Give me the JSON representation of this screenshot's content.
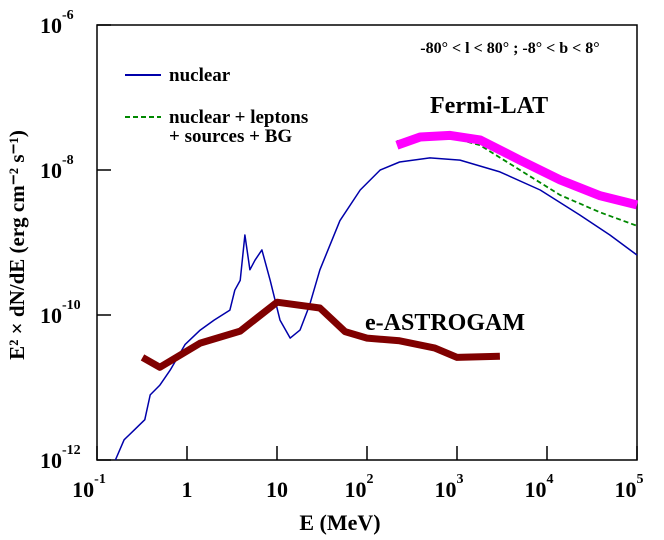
{
  "chart_data": {
    "type": "line",
    "x_label": "E (MeV)",
    "y_label": "E² × dN/dE  (erg cm⁻² s⁻¹)",
    "annotation": "-80° < l < 80° ; -8° < b < 8°",
    "log_x": true,
    "log_y": true,
    "xlim": [
      0.1,
      100000
    ],
    "ylim": [
      1e-12,
      1e-06
    ],
    "xticks": [
      {
        "value": 0.1,
        "label": "10",
        "exponent": "-1"
      },
      1,
      10,
      {
        "value": 100,
        "label": "10",
        "exponent": "2"
      },
      {
        "value": 1000,
        "label": "10",
        "exponent": "3"
      },
      {
        "value": 10000,
        "label": "10",
        "exponent": "4"
      },
      {
        "value": 100000,
        "label": "10",
        "exponent": "5"
      }
    ],
    "yticks": [
      {
        "value": 1e-12,
        "label": "10",
        "exponent": "-12"
      },
      {
        "value": 1e-10,
        "label": "10",
        "exponent": "-10"
      },
      {
        "value": 1e-08,
        "label": "10",
        "exponent": "-8"
      },
      {
        "value": 1e-06,
        "label": "10",
        "exponent": "-6"
      }
    ],
    "series": [
      {
        "name": [
          "nuclear"
        ],
        "color": "#0000aa",
        "dash": false,
        "x": [
          0.16,
          0.2,
          0.26,
          0.34,
          0.39,
          0.5,
          0.65,
          0.95,
          1.4,
          2.0,
          3.0,
          3.4,
          3.9,
          4.4,
          5.0,
          5.7,
          6.8,
          8.4,
          10.8,
          14,
          18,
          23,
          30,
          50,
          84,
          140,
          230,
          500,
          1080,
          3000,
          8400,
          23000,
          50000,
          100000
        ],
        "values": [
          1e-12,
          1.9e-12,
          2.6e-12,
          3.6e-12,
          7.9e-12,
          1.08e-11,
          1.74e-11,
          3.9e-11,
          6.2e-11,
          8.5e-11,
          1.17e-10,
          2.2e-10,
          3e-10,
          1.27e-09,
          4.2e-10,
          5.7e-10,
          7.9e-10,
          3e-10,
          8.5e-11,
          4.8e-11,
          6.2e-11,
          1.37e-10,
          4.2e-10,
          2e-09,
          5.3e-09,
          1e-08,
          1.29e-08,
          1.47e-08,
          1.37e-08,
          9.4e-09,
          5.3e-09,
          2.4e-09,
          1.27e-09,
          6.7e-10
        ]
      },
      {
        "name": [
          "nuclear + leptons",
          "+ sources + BG"
        ],
        "color": "#008800",
        "dash": true,
        "x": [
          215,
          650,
          1800,
          5000,
          14000,
          39000,
          100000
        ],
        "values": [
          2.5e-08,
          3.1e-08,
          2.2e-08,
          1e-08,
          4.5e-09,
          2.6e-09,
          1.7e-09
        ]
      },
      {
        "name": [
          "Fermi-LAT"
        ],
        "color": "#ff00ff",
        "dash": false,
        "x": [
          215,
          390,
          840,
          1800,
          5000,
          14000,
          39000,
          100000
        ],
        "values": [
          2.2e-08,
          2.85e-08,
          3e-08,
          2.6e-08,
          1.37e-08,
          7.3e-09,
          4.4e-09,
          3.3e-09
        ]
      },
      {
        "name": [
          "e-ASTROGAM"
        ],
        "color": "#800000",
        "dash": false,
        "x": [
          0.32,
          0.5,
          1.4,
          3.9,
          10,
          30,
          57,
          100,
          230,
          570,
          1000,
          3000
        ],
        "values": [
          2.6e-11,
          1.9e-11,
          4.1e-11,
          6e-11,
          1.5e-10,
          1.25e-10,
          5.9e-11,
          4.8e-11,
          4.4e-11,
          3.5e-11,
          2.6e-11,
          2.7e-11
        ]
      }
    ]
  }
}
